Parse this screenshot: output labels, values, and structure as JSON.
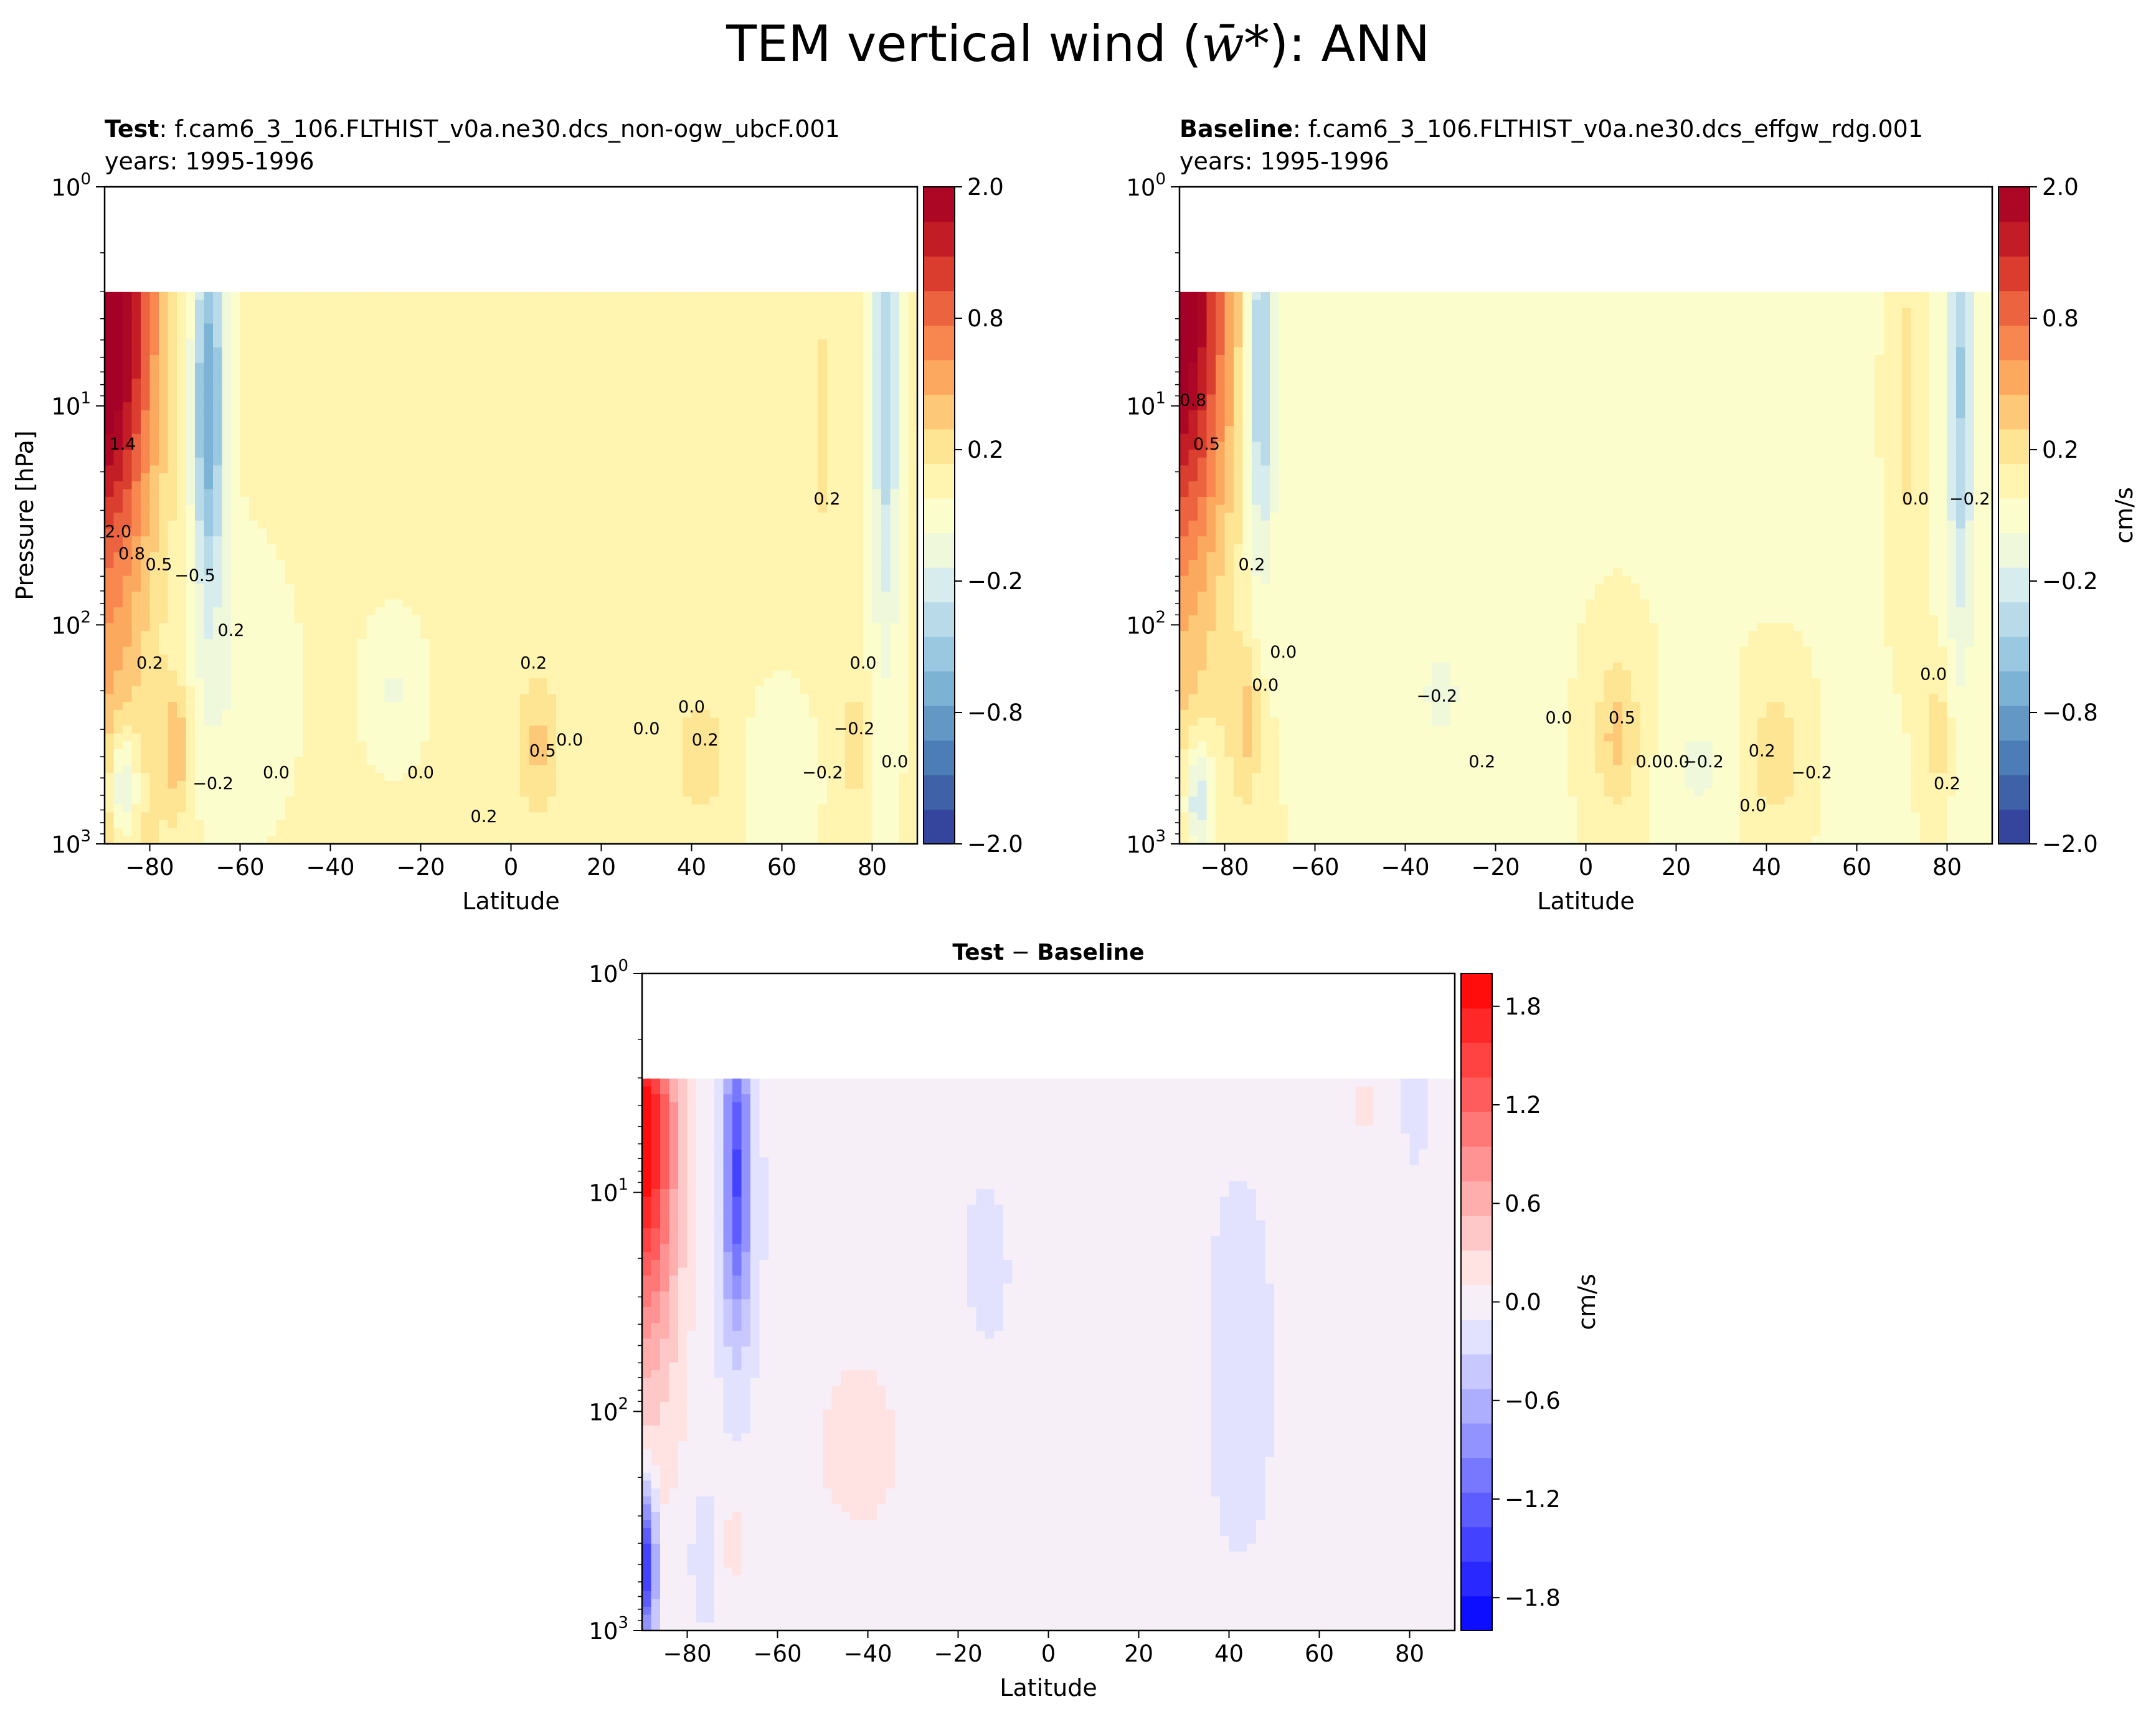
{
  "figure": {
    "title_prefix": "TEM vertical wind (",
    "title_symbol": "w̄*",
    "title_suffix": "): ANN"
  },
  "colors": {
    "rdylbu_r": [
      "#313695",
      "#3a54a3",
      "#4472b0",
      "#5b8fc0",
      "#74add1",
      "#93c4de",
      "#b4d8e8",
      "#d3ebef",
      "#eef8dc",
      "#fbfdcc",
      "#fff4ae",
      "#fee390",
      "#fdc373",
      "#fca25a",
      "#f67e4b",
      "#e65639",
      "#d32f27",
      "#b60f26",
      "#a50026"
    ],
    "bwr": [
      "#0000ff",
      "#1a1aff",
      "#3535ff",
      "#5050ff",
      "#6a6aff",
      "#8585ff",
      "#a0a0ff",
      "#bbbbff",
      "#d5d5ff",
      "#eeeeff",
      "#fff0f0",
      "#ffd5d5",
      "#ffbbbb",
      "#ffa0a0",
      "#ff8585",
      "#ff6a6a",
      "#ff5050",
      "#ff3535",
      "#ff1a1a",
      "#ff0000"
    ]
  },
  "chart_data": [
    {
      "type": "heatmap",
      "panel": "test",
      "title_bold": "Test",
      "title_rest": ": f.cam6_3_106.FLTHIST_v0a.ne30.dcs_non-ogw_ubcF.001",
      "subtitle": "years: 1995-1996",
      "xlabel": "Latitude",
      "ylabel": "Pressure [hPa]",
      "x_range": [
        -90,
        90
      ],
      "y_range_hPa": [
        1000,
        1
      ],
      "x_ticks": [
        "−80",
        "−60",
        "−40",
        "−20",
        "0",
        "20",
        "40",
        "60",
        "80"
      ],
      "y_ticks": [
        "10",
        "10",
        "10",
        "10"
      ],
      "y_tick_exponents": [
        "0",
        "1",
        "2",
        "3"
      ],
      "colorbar": {
        "min": -2.0,
        "max": 2.0,
        "ticks": [
          "2.0",
          "0.8",
          "0.2",
          "−0.2",
          "−0.8",
          "−2.0"
        ],
        "label": ""
      },
      "contour_labels": [
        "2.0",
        "1.4",
        "0.8",
        "0.5",
        "0.2",
        "0.0",
        "−0.2",
        "−0.5",
        "0.2",
        "0.0",
        "0.2",
        "0.5",
        "0.2",
        "0.0",
        "0.0",
        "0.2",
        "0.0",
        "−0.2",
        "0.2",
        "0.0",
        "−0.2",
        "0.0"
      ]
    },
    {
      "type": "heatmap",
      "panel": "baseline",
      "title_bold": "Baseline",
      "title_rest": ": f.cam6_3_106.FLTHIST_v0a.ne30.dcs_effgw_rdg.001",
      "subtitle": "years: 1995-1996",
      "xlabel": "Latitude",
      "ylabel": "",
      "x_range": [
        -90,
        90
      ],
      "y_range_hPa": [
        1000,
        1
      ],
      "x_ticks": [
        "−80",
        "−60",
        "−40",
        "−20",
        "0",
        "20",
        "40",
        "60",
        "80"
      ],
      "y_ticks": [
        "10",
        "10",
        "10",
        "10"
      ],
      "y_tick_exponents": [
        "0",
        "1",
        "2",
        "3"
      ],
      "colorbar": {
        "min": -2.0,
        "max": 2.0,
        "ticks": [
          "2.0",
          "0.8",
          "0.2",
          "−0.2",
          "−0.8",
          "−2.0"
        ],
        "label": "cm/s"
      },
      "contour_labels": [
        "0.8",
        "0.5",
        "0.2",
        "0.0",
        "0.0",
        "0.0",
        "−0.2",
        "0.2",
        "0.0",
        "0.5",
        "0.0",
        "−0.2",
        "0.2",
        "−0.2",
        "0.0",
        "0.0",
        "0.0",
        "−0.2",
        "0.2"
      ]
    },
    {
      "type": "heatmap",
      "panel": "difference",
      "title_bold": "Test",
      "title_mid": " − ",
      "title_bold2": "Baseline",
      "xlabel": "Latitude",
      "ylabel": "",
      "x_range": [
        -90,
        90
      ],
      "y_range_hPa": [
        1000,
        1
      ],
      "x_ticks": [
        "−80",
        "−60",
        "−40",
        "−20",
        "0",
        "20",
        "40",
        "60",
        "80"
      ],
      "y_ticks": [
        "10",
        "10",
        "10",
        "10"
      ],
      "y_tick_exponents": [
        "0",
        "1",
        "2",
        "3"
      ],
      "colorbar": {
        "min": -2.0,
        "max": 2.0,
        "ticks": [
          "1.8",
          "1.2",
          "0.6",
          "0.0",
          "−0.6",
          "−1.2",
          "−1.8"
        ],
        "label": "cm/s"
      }
    }
  ]
}
